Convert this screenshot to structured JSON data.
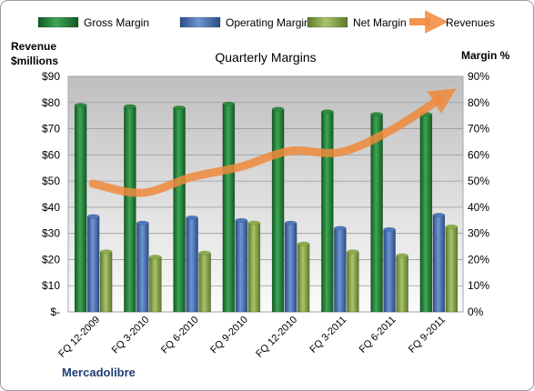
{
  "chart_data": {
    "type": "bar",
    "title": "Quarterly Margins",
    "company": "Mercadolibre",
    "left_axis_label": [
      "Revenue",
      "$millions"
    ],
    "right_axis_label": "Margin %",
    "categories": [
      "FQ 12-2009",
      "FQ 3-2010",
      "FQ 6-2010",
      "FQ 9-2010",
      "FQ 12-2010",
      "FQ 3-2011",
      "FQ 6-2011",
      "FQ 9-2011"
    ],
    "left_ticks": [
      "$-",
      "$10",
      "$20",
      "$30",
      "$40",
      "$50",
      "$60",
      "$70",
      "$80",
      "$90"
    ],
    "right_ticks": [
      "0%",
      "10%",
      "20%",
      "30%",
      "40%",
      "50%",
      "60%",
      "70%",
      "80%",
      "90%"
    ],
    "ylim_left": [
      0,
      90
    ],
    "ylim_right": [
      0,
      90
    ],
    "grid": true,
    "legend_position": "top",
    "series": [
      {
        "name": "Gross Margin",
        "axis": "right",
        "kind": "bar",
        "color": "#2e8b3f",
        "values": [
          79,
          78.5,
          78,
          79.5,
          77.5,
          76.5,
          75.5,
          75.5
        ]
      },
      {
        "name": "Operating Margin",
        "axis": "right",
        "kind": "bar",
        "color": "#4f78bb",
        "values": [
          36.5,
          34,
          36,
          35,
          34,
          32,
          31.5,
          37
        ]
      },
      {
        "name": "Net Margin",
        "axis": "right",
        "kind": "bar",
        "color": "#8dae49",
        "values": [
          23,
          21,
          22.5,
          34,
          26,
          23,
          21.5,
          32.5
        ]
      },
      {
        "name": "Revenues",
        "axis": "left",
        "kind": "line",
        "color": "#f08a3c",
        "values": [
          49,
          45.5,
          51.5,
          55.5,
          61.5,
          61,
          69,
          81
        ]
      }
    ]
  }
}
